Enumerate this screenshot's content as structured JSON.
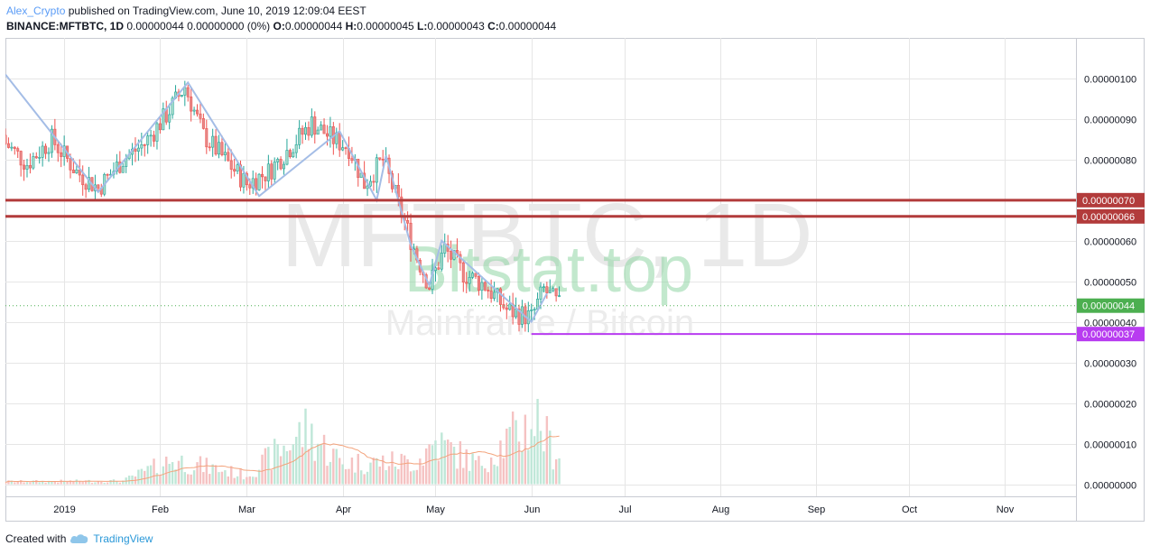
{
  "header": {
    "author": "Alex_Crypto",
    "published_text": "published on TradingView.com, June 10, 2019 12:09:04 EEST",
    "symbol": "BINANCE:MFTBTC, 1D",
    "change": "0.00000044 0.00000000 (0%)",
    "o_label": "O:",
    "o_value": "0.00000044",
    "h_label": "H:",
    "h_value": "0.00000045",
    "l_label": "L:",
    "l_value": "0.00000043",
    "c_label": "C:",
    "c_value": "0.00000044"
  },
  "watermark": {
    "symbol_text": "MFTBTC, 1D",
    "subtitle_text": "Mainframe / Bitcoin",
    "overlay_text": "Bitstat.top"
  },
  "footer": {
    "created_with": "Created with",
    "brand": "TradingView"
  },
  "colors": {
    "up": "#26a69a",
    "up_fill": "#a9dccb",
    "down": "#ef5350",
    "down_fill": "#e58a8a",
    "zigzag": "#a4bde6",
    "resistance": "#b23b3b",
    "support": "#b83cf0",
    "current_label_bg": "#4caf50",
    "volume_ma": "#f3a37c",
    "grid": "#e6e6e6"
  },
  "chart_data": {
    "type": "candlestick",
    "title": "",
    "ylim": [
      -3e-08,
      1.1e-06
    ],
    "y_ticks": [
      {
        "value": 1e-06,
        "label": "0.00000100"
      },
      {
        "value": 9e-07,
        "label": "0.00000090"
      },
      {
        "value": 8e-07,
        "label": "0.00000080"
      },
      {
        "value": 6e-07,
        "label": "0.00000060"
      },
      {
        "value": 5e-07,
        "label": "0.00000050"
      },
      {
        "value": 4e-07,
        "label": "0.00000040"
      },
      {
        "value": 3e-07,
        "label": "0.00000030"
      },
      {
        "value": 2e-07,
        "label": "0.00000020"
      },
      {
        "value": 1e-07,
        "label": "0.00000010"
      },
      {
        "value": 0.0,
        "label": "0.00000000"
      }
    ],
    "x_ticks": [
      {
        "date": "2019-01-01",
        "label": "2019"
      },
      {
        "date": "2019-02-01",
        "label": "Feb"
      },
      {
        "date": "2019-03-01",
        "label": "Mar"
      },
      {
        "date": "2019-04-01",
        "label": "Apr"
      },
      {
        "date": "2019-05-01",
        "label": "May"
      },
      {
        "date": "2019-06-01",
        "label": "Jun"
      },
      {
        "date": "2019-07-01",
        "label": "Jul"
      },
      {
        "date": "2019-08-01",
        "label": "Aug"
      },
      {
        "date": "2019-09-01",
        "label": "Sep"
      },
      {
        "date": "2019-10-01",
        "label": "Oct"
      },
      {
        "date": "2019-11-01",
        "label": "Nov"
      }
    ],
    "x_range": [
      "2018-12-13",
      "2019-11-24"
    ],
    "horizontal_lines": [
      {
        "value": 7e-07,
        "label": "0.00000070",
        "kind": "resistance",
        "from": "2018-12-13"
      },
      {
        "value": 6.6e-07,
        "label": "0.00000066",
        "kind": "resistance",
        "from": "2018-12-13"
      },
      {
        "value": 3.7e-07,
        "label": "0.00000037",
        "kind": "support",
        "from": "2019-06-01"
      }
    ],
    "last_price": {
      "value": 4.4e-07,
      "label": "0.00000044"
    },
    "zigzag": [
      {
        "date": "2018-12-13",
        "price": 1.01e-06
      },
      {
        "date": "2019-01-12",
        "price": 7.2e-07
      },
      {
        "date": "2019-02-10",
        "price": 9.9e-07
      },
      {
        "date": "2019-03-05",
        "price": 7.1e-07
      },
      {
        "date": "2019-03-31",
        "price": 8.7e-07
      },
      {
        "date": "2019-04-12",
        "price": 7e-07
      },
      {
        "date": "2019-04-15",
        "price": 8.1e-07
      },
      {
        "date": "2019-04-23",
        "price": 5.9e-07
      },
      {
        "date": "2019-04-29",
        "price": 4.9e-07
      },
      {
        "date": "2019-05-03",
        "price": 6e-07
      },
      {
        "date": "2019-06-01",
        "price": 4e-07
      },
      {
        "date": "2019-06-06",
        "price": 4.7e-07
      }
    ],
    "anchors": [
      {
        "date": "2018-12-13",
        "close": 8.4e-07
      },
      {
        "date": "2018-12-20",
        "close": 7.9e-07
      },
      {
        "date": "2018-12-28",
        "close": 8.5e-07
      },
      {
        "date": "2019-01-05",
        "close": 7.7e-07
      },
      {
        "date": "2019-01-12",
        "close": 7.3e-07
      },
      {
        "date": "2019-01-20",
        "close": 8e-07
      },
      {
        "date": "2019-01-27",
        "close": 8.4e-07
      },
      {
        "date": "2019-02-03",
        "close": 9.1e-07
      },
      {
        "date": "2019-02-09",
        "close": 9.8e-07
      },
      {
        "date": "2019-02-15",
        "close": 8.6e-07
      },
      {
        "date": "2019-02-22",
        "close": 8e-07
      },
      {
        "date": "2019-03-01",
        "close": 7.4e-07
      },
      {
        "date": "2019-03-08",
        "close": 7.7e-07
      },
      {
        "date": "2019-03-15",
        "close": 8.3e-07
      },
      {
        "date": "2019-03-22",
        "close": 8.9e-07
      },
      {
        "date": "2019-03-29",
        "close": 8.5e-07
      },
      {
        "date": "2019-04-03",
        "close": 8.3e-07
      },
      {
        "date": "2019-04-08",
        "close": 7.4e-07
      },
      {
        "date": "2019-04-14",
        "close": 8e-07
      },
      {
        "date": "2019-04-19",
        "close": 6.9e-07
      },
      {
        "date": "2019-04-25",
        "close": 5.6e-07
      },
      {
        "date": "2019-04-29",
        "close": 4.9e-07
      },
      {
        "date": "2019-05-04",
        "close": 5.8e-07
      },
      {
        "date": "2019-05-10",
        "close": 5.2e-07
      },
      {
        "date": "2019-05-17",
        "close": 4.9e-07
      },
      {
        "date": "2019-05-24",
        "close": 4.3e-07
      },
      {
        "date": "2019-06-01",
        "close": 4.1e-07
      },
      {
        "date": "2019-06-05",
        "close": 4.8e-07
      },
      {
        "date": "2019-06-10",
        "close": 4.4e-07
      }
    ],
    "volume_profile": [
      {
        "date": "2018-12-13",
        "volume": 8e-09
      },
      {
        "date": "2019-01-20",
        "volume": 1e-08
      },
      {
        "date": "2019-02-05",
        "volume": 7.5e-08
      },
      {
        "date": "2019-03-01",
        "volume": 2.8e-08
      },
      {
        "date": "2019-03-20",
        "volume": 1.65e-07
      },
      {
        "date": "2019-04-01",
        "volume": 6.5e-08
      },
      {
        "date": "2019-04-25",
        "volume": 7e-08
      },
      {
        "date": "2019-05-01",
        "volume": 1.3e-07
      },
      {
        "date": "2019-05-15",
        "volume": 6e-08
      },
      {
        "date": "2019-05-25",
        "volume": 1.4e-07
      },
      {
        "date": "2019-06-03",
        "volume": 2e-07
      },
      {
        "date": "2019-06-08",
        "volume": 1e-07
      }
    ]
  }
}
